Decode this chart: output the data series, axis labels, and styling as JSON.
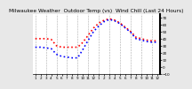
{
  "title": "Milwaukee Weather  Outdoor Temp (vs)  Wind Chill (Last 24 Hours)",
  "bg_color": "#e8e8e8",
  "plot_bg": "#ffffff",
  "grid_color": "#aaaaaa",
  "x_values": [
    0,
    1,
    2,
    3,
    4,
    5,
    6,
    7,
    8,
    9,
    10,
    11,
    12,
    13,
    14,
    15,
    16,
    17,
    18,
    19,
    20,
    21,
    22,
    23
  ],
  "temp_values": [
    40,
    40,
    40,
    39,
    30,
    28,
    28,
    28,
    28,
    35,
    45,
    55,
    62,
    66,
    68,
    66,
    62,
    56,
    50,
    42,
    40,
    38,
    37,
    37
  ],
  "windchill_values": [
    28,
    28,
    27,
    26,
    18,
    15,
    14,
    13,
    13,
    25,
    38,
    50,
    58,
    64,
    67,
    65,
    61,
    55,
    49,
    40,
    38,
    36,
    35,
    35
  ],
  "temp_color": "#ff0000",
  "wind_color": "#0000ff",
  "ylim_min": -10,
  "ylim_max": 75,
  "ylabel_right": true,
  "yticks": [
    -10,
    0,
    10,
    20,
    30,
    40,
    50,
    60,
    70
  ],
  "xtick_labels": [
    "1",
    "2",
    "3",
    "4",
    "5",
    "6",
    "7",
    "8",
    "9",
    "10",
    "11",
    "12",
    "1",
    "2",
    "3",
    "4",
    "5",
    "6",
    "7",
    "8",
    "9",
    "10",
    "11",
    "12"
  ],
  "title_fontsize": 4.2,
  "tick_fontsize": 3.0,
  "dot_size": 1.2,
  "right_border_color": "#000000"
}
